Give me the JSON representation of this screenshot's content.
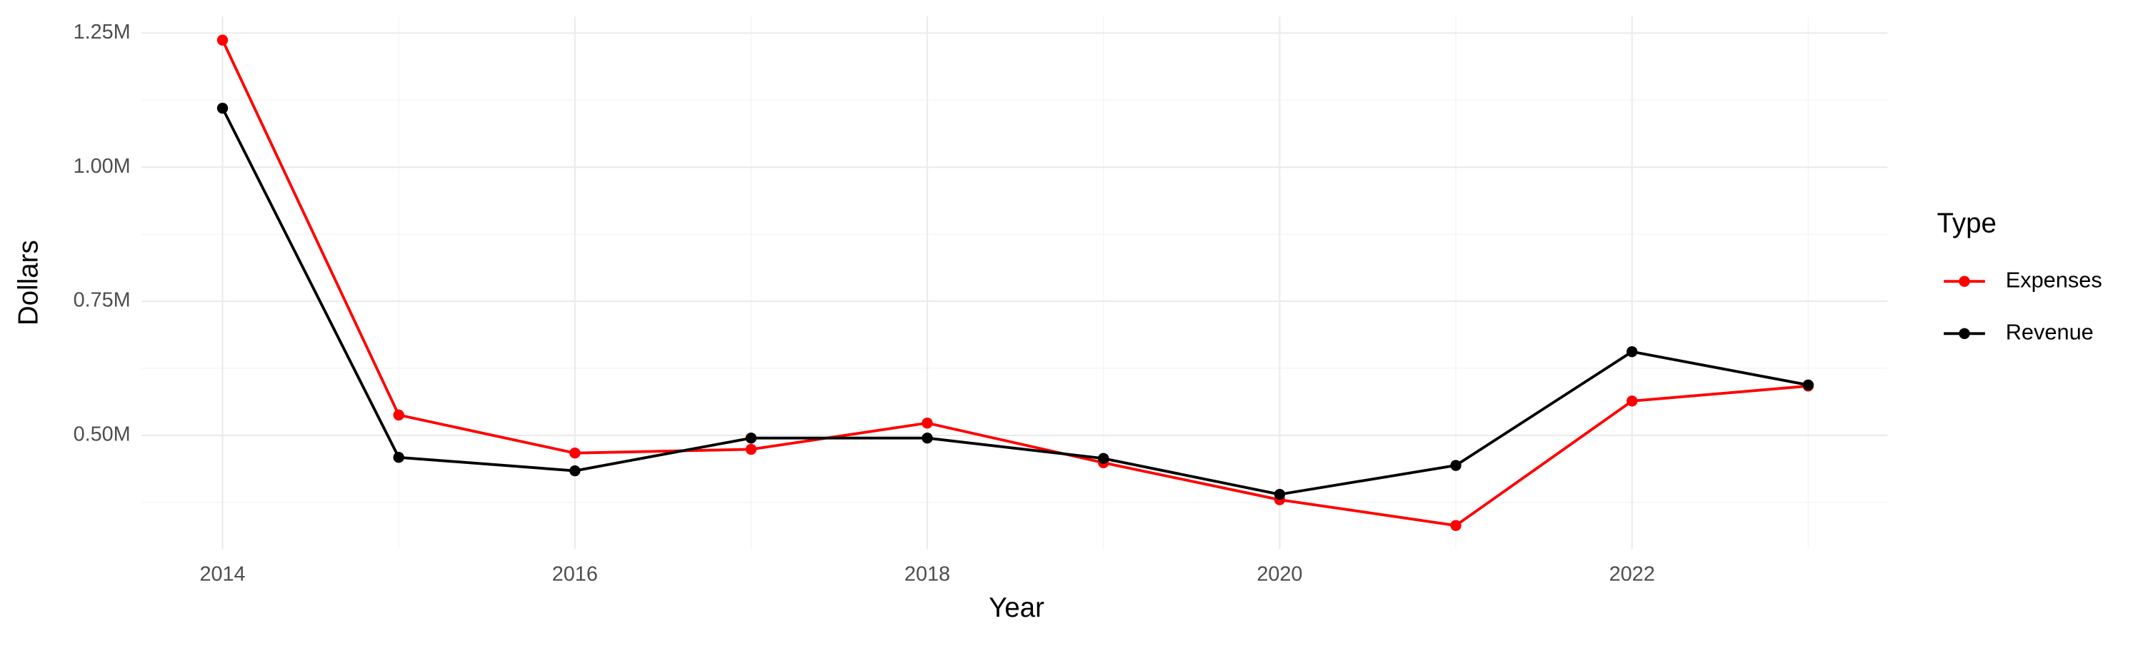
{
  "chart_data": {
    "type": "line",
    "x_label": "Year",
    "y_label": "Dollars",
    "legend_title": "Type",
    "x": [
      2014,
      2015,
      2016,
      2017,
      2018,
      2019,
      2020,
      2021,
      2022,
      2023
    ],
    "series": [
      {
        "name": "Expenses",
        "color": "#ff0000",
        "values": [
          1237000,
          538000,
          467000,
          474000,
          523000,
          449000,
          380000,
          332000,
          564000,
          592000
        ]
      },
      {
        "name": "Revenue",
        "color": "#000000",
        "values": [
          1110000,
          459000,
          434000,
          495000,
          495000,
          457000,
          390000,
          444000,
          656000,
          594000
        ]
      }
    ],
    "xlim": [
      2013.54,
      2023.45
    ],
    "xticks": [
      2014,
      2016,
      2018,
      2020,
      2022
    ],
    "x_minor_ticks": [
      2015,
      2017,
      2019,
      2021,
      2023
    ],
    "ylim": [
      288000,
      1281000
    ],
    "yticks": [
      {
        "value": 500000,
        "label": "0.50M"
      },
      {
        "value": 750000,
        "label": "0.75M"
      },
      {
        "value": 1000000,
        "label": "1.00M"
      },
      {
        "value": 1250000,
        "label": "1.25M"
      }
    ],
    "y_minor_ticks": [
      375000,
      625000,
      875000,
      1125000
    ],
    "grid": true,
    "legend_position": "right"
  }
}
